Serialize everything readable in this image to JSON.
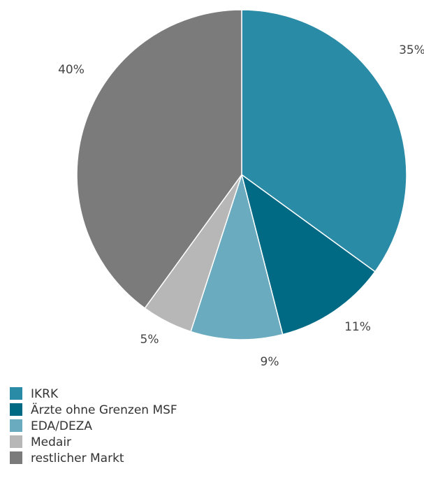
{
  "chart_data": {
    "type": "pie",
    "categories": [
      "IKRK",
      "Ärzte ohne Grenzen MSF",
      "EDA/DEZA",
      "Medair",
      "restlicher Markt"
    ],
    "values": [
      35,
      11,
      9,
      5,
      40
    ],
    "value_labels": [
      "35%",
      "11%",
      "9%",
      "5%",
      "40%"
    ],
    "colors": [
      "#2a8ba6",
      "#006a85",
      "#6aabbf",
      "#b7b7b7",
      "#7b7b7b"
    ],
    "legend": "bottom-left"
  }
}
